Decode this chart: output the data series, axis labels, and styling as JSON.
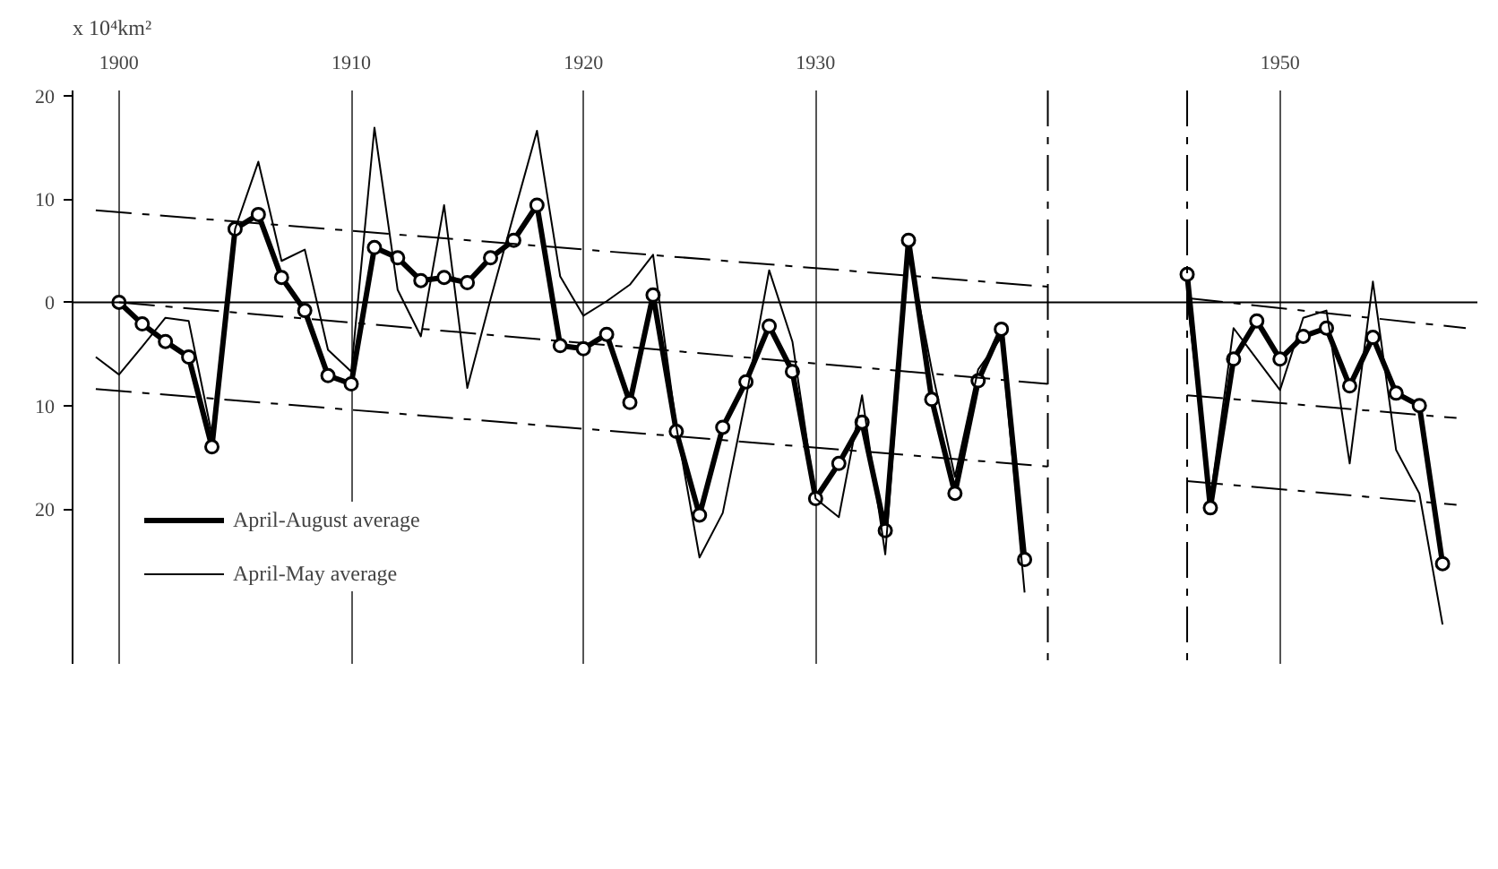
{
  "chart_data": {
    "type": "line",
    "ylabel": "x 10⁴km²",
    "x": [
      1900,
      1901,
      1902,
      1903,
      1904,
      1905,
      1906,
      1907,
      1908,
      1909,
      1910,
      1911,
      1912,
      1913,
      1914,
      1915,
      1916,
      1917,
      1918,
      1919,
      1920,
      1921,
      1922,
      1923,
      1924,
      1925,
      1926,
      1927,
      1928,
      1929,
      1930,
      1931,
      1932,
      1933,
      1934,
      1935,
      1936,
      1937,
      1938,
      1939,
      null,
      1946,
      1947,
      1948,
      1949,
      1950,
      1951,
      1952,
      1953,
      1954,
      1955,
      1956,
      1957
    ],
    "xlim": [
      1898,
      1958.5
    ],
    "ylim": [
      -35,
      20.5
    ],
    "xticks": [
      1900,
      1910,
      1920,
      1930,
      1950
    ],
    "yticks": [
      20,
      10,
      0,
      {
        "value": -10,
        "label": "10"
      },
      {
        "value": -20,
        "label": "20"
      }
    ],
    "grid": "x",
    "legend": "bottom left",
    "ref_lines": [
      {
        "axis": "y",
        "value": 0,
        "color": "#000000",
        "line_style": "solid"
      },
      {
        "axis": "x",
        "value": 1940,
        "color": "#000000",
        "line_style": "dashed"
      },
      {
        "axis": "x",
        "value": 1946,
        "color": "#000000",
        "line_style": "dashed"
      }
    ],
    "series": [
      {
        "name": "April-August average",
        "color": "#000000",
        "marker": "circle",
        "values": [
          0,
          -2.1,
          -3.8,
          -5.3,
          -14.0,
          7.1,
          8.5,
          2.4,
          -0.8,
          -7.1,
          -7.9,
          5.3,
          4.3,
          2.1,
          2.4,
          1.9,
          4.3,
          6.0,
          9.4,
          -4.2,
          -4.5,
          -3.1,
          -9.7,
          0.7,
          -12.5,
          -20.6,
          -12.1,
          -7.7,
          -2.3,
          -6.7,
          -19.0,
          -15.6,
          -11.6,
          -22.1,
          6.0,
          -9.4,
          -18.5,
          -7.6,
          -2.6,
          -24.9,
          null,
          2.7,
          -19.9,
          -5.5,
          -1.8,
          -5.5,
          -3.3,
          -2.5,
          -8.1,
          -3.4,
          -8.8,
          -10.0,
          -25.3
        ]
      },
      {
        "name": "April-May average",
        "color": "#000000",
        "marker": "none",
        "x": [
          1899,
          1900,
          1901,
          1902,
          1903,
          1904,
          1905,
          1906,
          1907,
          1908,
          1909,
          1910,
          1911,
          1912,
          1913,
          1914,
          1915,
          1916,
          1917,
          1918,
          1919,
          1920,
          1921,
          1922,
          1923,
          1924,
          1925,
          1926,
          1927,
          1928,
          1929,
          1930,
          1931,
          1932,
          1933,
          1934,
          1935,
          1936,
          1937,
          1938,
          1939,
          null,
          1946,
          1947,
          1948,
          1949,
          1950,
          1951,
          1952,
          1953,
          1954,
          1955,
          1956,
          1957
        ],
        "values": [
          -5.3,
          -7.0,
          -4.3,
          -1.5,
          -1.8,
          -12.8,
          7.1,
          13.6,
          4.0,
          5.1,
          -4.6,
          -6.7,
          16.9,
          1.2,
          -3.3,
          9.4,
          -8.3,
          0.3,
          8.5,
          16.6,
          2.5,
          -1.3,
          0.1,
          1.7,
          4.6,
          -12.0,
          -24.7,
          -20.4,
          -9.3,
          3.1,
          -3.8,
          -19.0,
          -20.8,
          -9.0,
          -24.4,
          5.3,
          -6.5,
          -16.9,
          -6.5,
          -3.4,
          -28.1,
          null,
          0.4,
          -19.0,
          -2.5,
          -5.5,
          -8.5,
          -1.5,
          -0.8,
          -15.6,
          2.0,
          -14.3,
          -18.5,
          -31.2
        ]
      },
      {
        "color": "#000000",
        "marker": "none",
        "line_style": "dashed",
        "x": [
          1899,
          1940
        ],
        "values": [
          8.9,
          1.5
        ]
      },
      {
        "color": "#000000",
        "marker": "none",
        "line_style": "dashed",
        "x": [
          1900,
          1940
        ],
        "values": [
          0,
          -7.9
        ]
      },
      {
        "color": "#000000",
        "marker": "none",
        "line_style": "dashed",
        "x": [
          1899,
          1940
        ],
        "values": [
          -8.4,
          -15.9
        ]
      },
      {
        "color": "#000000",
        "marker": "none",
        "line_style": "dashed",
        "x": [
          1946,
          1958
        ],
        "values": [
          0.4,
          -2.5
        ]
      },
      {
        "color": "#000000",
        "marker": "none",
        "line_style": "dashed",
        "x": [
          1946,
          1957.6
        ],
        "values": [
          -9.0,
          -11.2
        ]
      },
      {
        "color": "#000000",
        "marker": "none",
        "line_style": "dashed",
        "x": [
          1946,
          1957.6
        ],
        "values": [
          -17.3,
          -19.6
        ]
      }
    ]
  }
}
